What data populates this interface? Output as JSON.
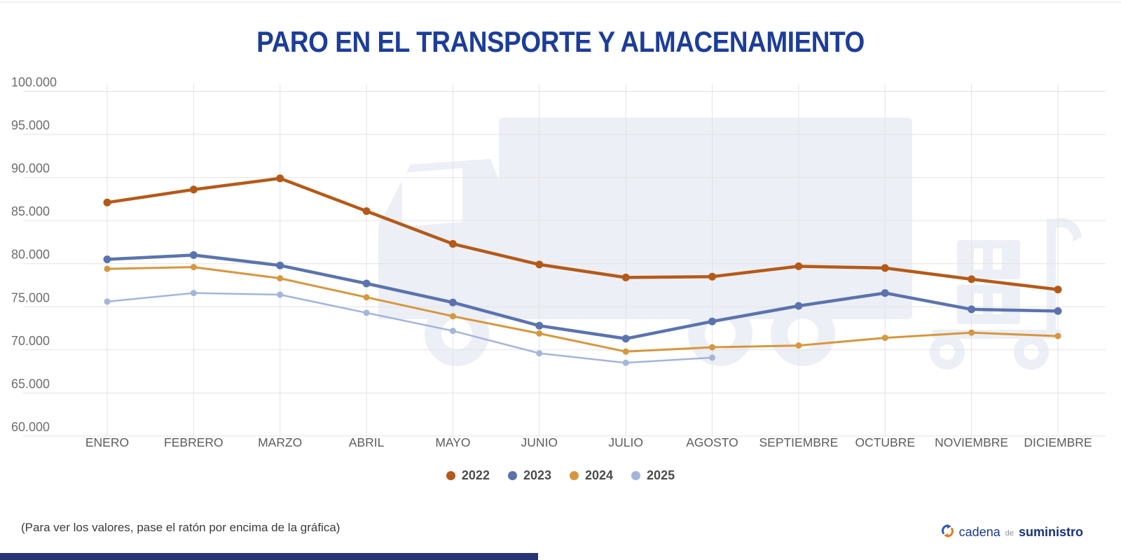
{
  "title": "PARO EN EL TRANSPORTE Y ALMACENAMIENTO",
  "footnote": "(Para ver los valores, pase el ratón por encima de la gráfica)",
  "logo": {
    "text_primary": "cadena",
    "text_middle": "de",
    "text_secondary": "suministro"
  },
  "colors": {
    "title": "#1c3d99",
    "grid": "#e3e3e3",
    "y_axis_label": "#6e6e6e",
    "x_axis_label": "#5d5d5d",
    "watermark": "#edeff6",
    "bottom_bar": "#283473",
    "logo_blue": "#1d3a8f",
    "logo_orange": "#e87a1e"
  },
  "chart_data": {
    "type": "line",
    "title": "PARO EN EL TRANSPORTE Y ALMACENAMIENTO",
    "xlabel": "",
    "ylabel": "",
    "ylim": [
      60000,
      100000
    ],
    "grid": true,
    "legend_position": "bottom",
    "y_tick_labels": [
      "100.000",
      "95.000",
      "90.000",
      "85.000",
      "80.000",
      "75.000",
      "70.000",
      "65.000",
      "60.000"
    ],
    "categories": [
      "ENERO",
      "FEBRERO",
      "MARZO",
      "ABRIL",
      "MAYO",
      "JUNIO",
      "JULIO",
      "AGOSTO",
      "SEPTIEMBRE",
      "OCTUBRE",
      "NOVIEMBRE",
      "DICIEMBRE"
    ],
    "series": [
      {
        "name": "2022",
        "color": "#b45a19",
        "values": [
          87100,
          88600,
          89900,
          86100,
          82300,
          79900,
          78400,
          78500,
          79700,
          79500,
          78200,
          77000
        ]
      },
      {
        "name": "2023",
        "color": "#5b73ad",
        "values": [
          80500,
          81000,
          79800,
          77700,
          75500,
          72800,
          71300,
          73300,
          75100,
          76600,
          74700,
          74500
        ]
      },
      {
        "name": "2024",
        "color": "#d6973f",
        "values": [
          79400,
          79600,
          78300,
          76100,
          73900,
          71900,
          69800,
          70300,
          70500,
          71400,
          72000,
          71600
        ]
      },
      {
        "name": "2025",
        "color": "#a4b5da",
        "values": [
          75600,
          76600,
          76400,
          74300,
          72200,
          69600,
          68500,
          69100,
          null,
          null,
          null,
          null
        ]
      }
    ]
  }
}
